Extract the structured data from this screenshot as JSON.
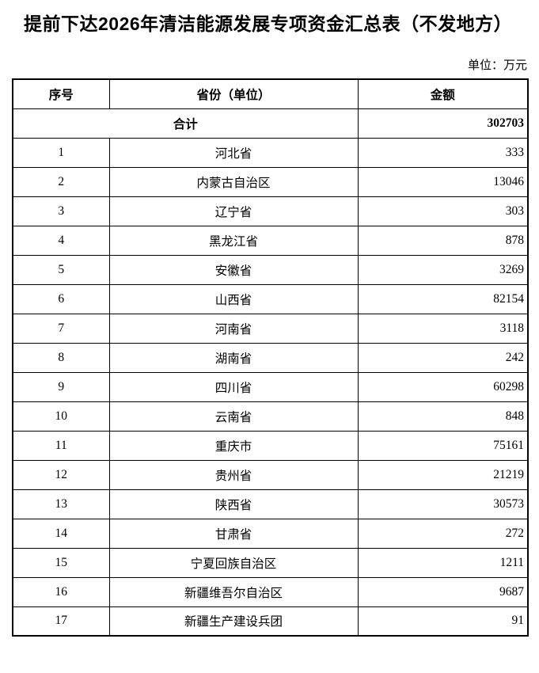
{
  "document": {
    "title": "提前下达2026年清洁能源发展专项资金汇总表（不发地方）",
    "unit_note": "单位：万元"
  },
  "table": {
    "headers": {
      "no": "序号",
      "province": "省份（单位）",
      "amount": "金额"
    },
    "total": {
      "label": "合计",
      "amount": "302703"
    },
    "rows": [
      {
        "no": "1",
        "province": "河北省",
        "amount": "333"
      },
      {
        "no": "2",
        "province": "内蒙古自治区",
        "amount": "13046"
      },
      {
        "no": "3",
        "province": "辽宁省",
        "amount": "303"
      },
      {
        "no": "4",
        "province": "黑龙江省",
        "amount": "878"
      },
      {
        "no": "5",
        "province": "安徽省",
        "amount": "3269"
      },
      {
        "no": "6",
        "province": "山西省",
        "amount": "82154"
      },
      {
        "no": "7",
        "province": "河南省",
        "amount": "3118"
      },
      {
        "no": "8",
        "province": "湖南省",
        "amount": "242"
      },
      {
        "no": "9",
        "province": "四川省",
        "amount": "60298"
      },
      {
        "no": "10",
        "province": "云南省",
        "amount": "848"
      },
      {
        "no": "11",
        "province": "重庆市",
        "amount": "75161"
      },
      {
        "no": "12",
        "province": "贵州省",
        "amount": "21219"
      },
      {
        "no": "13",
        "province": "陕西省",
        "amount": "30573"
      },
      {
        "no": "14",
        "province": "甘肃省",
        "amount": "272"
      },
      {
        "no": "15",
        "province": "宁夏回族自治区",
        "amount": "1211"
      },
      {
        "no": "16",
        "province": "新疆维吾尔自治区",
        "amount": "9687"
      },
      {
        "no": "17",
        "province": "新疆生产建设兵团",
        "amount": "91"
      }
    ]
  }
}
